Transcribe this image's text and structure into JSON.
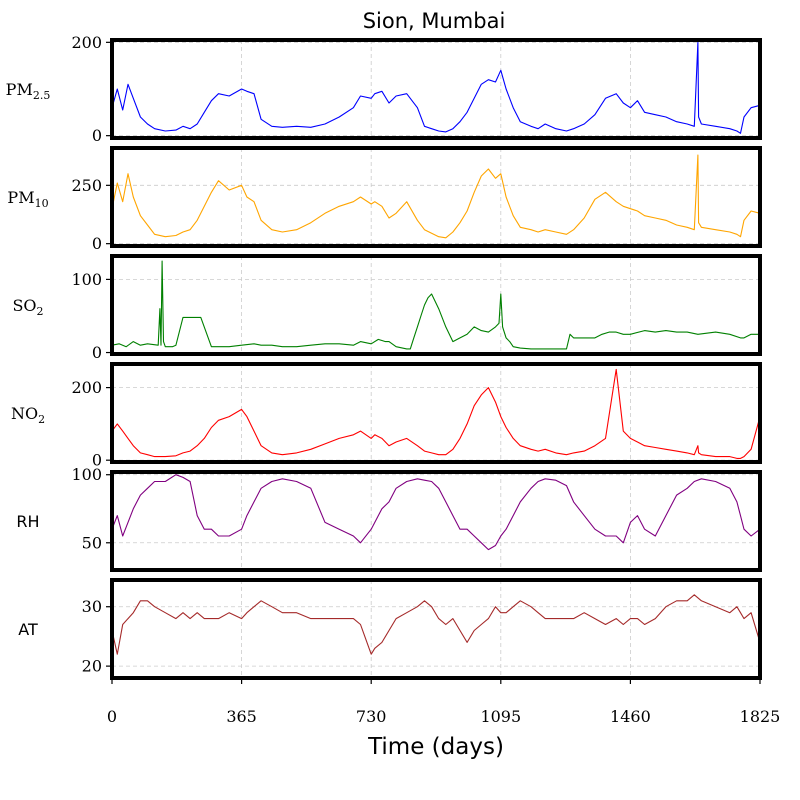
{
  "chart_data": {
    "type": "line",
    "title": "Sion, Mumbai",
    "xlabel": "Time (days)",
    "xlim": [
      0,
      1825
    ],
    "xticks": [
      0,
      365,
      730,
      1095,
      1460,
      1825
    ],
    "xtick_labels": [
      "0",
      "365",
      "730",
      "1095",
      "1460",
      "1825"
    ],
    "grid": true,
    "panels": [
      {
        "key": "pm25",
        "label": "PM",
        "label_sub": "2.5",
        "color": "#0000ff",
        "ylim": [
          -5,
          205
        ],
        "yticks": [
          0,
          200
        ],
        "ytick_labels": [
          "0",
          "200"
        ],
        "x": [
          0,
          15,
          30,
          45,
          60,
          80,
          100,
          120,
          150,
          180,
          200,
          220,
          240,
          260,
          280,
          300,
          330,
          365,
          380,
          400,
          420,
          450,
          480,
          520,
          560,
          600,
          640,
          680,
          700,
          730,
          740,
          760,
          780,
          800,
          830,
          860,
          880,
          900,
          920,
          940,
          960,
          980,
          1000,
          1020,
          1040,
          1060,
          1080,
          1095,
          1110,
          1130,
          1150,
          1180,
          1200,
          1220,
          1250,
          1280,
          1300,
          1330,
          1360,
          1390,
          1420,
          1440,
          1460,
          1480,
          1500,
          1530,
          1560,
          1590,
          1620,
          1640,
          1650,
          1652,
          1660,
          1700,
          1740,
          1760,
          1770,
          1780,
          1800,
          1825
        ],
        "y": [
          60,
          100,
          55,
          110,
          80,
          40,
          25,
          15,
          10,
          12,
          20,
          15,
          25,
          50,
          75,
          90,
          85,
          100,
          95,
          90,
          35,
          20,
          18,
          20,
          18,
          25,
          40,
          60,
          85,
          80,
          90,
          95,
          70,
          85,
          90,
          60,
          20,
          15,
          10,
          8,
          15,
          30,
          50,
          80,
          110,
          120,
          115,
          140,
          100,
          60,
          30,
          20,
          15,
          25,
          15,
          10,
          15,
          25,
          45,
          80,
          90,
          70,
          60,
          75,
          50,
          45,
          40,
          30,
          25,
          20,
          200,
          40,
          25,
          20,
          15,
          10,
          5,
          40,
          60,
          65
        ]
      },
      {
        "key": "pm10",
        "label": "PM",
        "label_sub": "10",
        "color": "#ffa500",
        "ylim": [
          -10,
          410
        ],
        "yticks": [
          0,
          250
        ],
        "ytick_labels": [
          "0",
          "250"
        ],
        "x": [
          0,
          15,
          30,
          45,
          60,
          80,
          100,
          120,
          150,
          180,
          200,
          220,
          240,
          260,
          280,
          300,
          330,
          365,
          380,
          400,
          420,
          450,
          480,
          520,
          560,
          600,
          640,
          680,
          700,
          730,
          740,
          760,
          780,
          800,
          830,
          860,
          880,
          900,
          920,
          940,
          960,
          980,
          1000,
          1020,
          1040,
          1060,
          1080,
          1095,
          1110,
          1130,
          1150,
          1180,
          1200,
          1220,
          1250,
          1280,
          1300,
          1330,
          1360,
          1390,
          1420,
          1440,
          1460,
          1480,
          1500,
          1530,
          1560,
          1590,
          1620,
          1640,
          1650,
          1652,
          1660,
          1700,
          1740,
          1760,
          1770,
          1780,
          1800,
          1825
        ],
        "y": [
          150,
          260,
          180,
          300,
          200,
          120,
          80,
          40,
          30,
          35,
          50,
          60,
          100,
          160,
          220,
          270,
          230,
          250,
          200,
          180,
          100,
          60,
          50,
          60,
          90,
          130,
          160,
          180,
          200,
          170,
          180,
          160,
          110,
          130,
          180,
          100,
          60,
          45,
          30,
          25,
          50,
          90,
          140,
          220,
          290,
          320,
          280,
          300,
          200,
          120,
          70,
          60,
          50,
          60,
          50,
          40,
          60,
          110,
          190,
          220,
          180,
          160,
          150,
          140,
          120,
          110,
          100,
          80,
          70,
          60,
          380,
          90,
          70,
          60,
          50,
          40,
          30,
          100,
          140,
          130
        ]
      },
      {
        "key": "so2",
        "label": "SO",
        "label_sub": "2",
        "color": "#008000",
        "ylim": [
          -2,
          132
        ],
        "yticks": [
          0,
          100
        ],
        "ytick_labels": [
          "0",
          "100"
        ],
        "x": [
          0,
          20,
          40,
          60,
          80,
          100,
          130,
          135,
          138,
          141,
          145,
          150,
          160,
          170,
          180,
          200,
          220,
          250,
          280,
          300,
          330,
          365,
          400,
          420,
          450,
          480,
          520,
          560,
          600,
          640,
          680,
          700,
          730,
          750,
          770,
          780,
          800,
          830,
          840,
          850,
          860,
          870,
          880,
          890,
          900,
          920,
          940,
          960,
          980,
          1000,
          1020,
          1040,
          1060,
          1080,
          1090,
          1095,
          1100,
          1110,
          1120,
          1130,
          1150,
          1180,
          1200,
          1220,
          1250,
          1280,
          1290,
          1300,
          1330,
          1360,
          1380,
          1400,
          1420,
          1440,
          1460,
          1500,
          1530,
          1560,
          1590,
          1620,
          1650,
          1700,
          1740,
          1770,
          1780,
          1800,
          1825
        ],
        "y": [
          10,
          12,
          8,
          15,
          10,
          12,
          10,
          60,
          10,
          125,
          15,
          8,
          8,
          8,
          10,
          48,
          48,
          48,
          8,
          8,
          8,
          10,
          12,
          10,
          10,
          8,
          8,
          10,
          12,
          12,
          10,
          15,
          12,
          18,
          15,
          15,
          8,
          5,
          5,
          20,
          35,
          50,
          65,
          75,
          80,
          60,
          35,
          15,
          20,
          25,
          35,
          30,
          28,
          35,
          40,
          80,
          35,
          20,
          15,
          8,
          6,
          5,
          5,
          5,
          5,
          5,
          25,
          20,
          20,
          20,
          25,
          28,
          28,
          25,
          25,
          30,
          28,
          30,
          28,
          28,
          25,
          28,
          25,
          20,
          20,
          25,
          25
        ]
      },
      {
        "key": "no2",
        "label": "NO",
        "label_sub": "2",
        "color": "#ff0000",
        "ylim": [
          -5,
          265
        ],
        "yticks": [
          0,
          200
        ],
        "ytick_labels": [
          "0",
          "200"
        ],
        "x": [
          0,
          15,
          30,
          45,
          60,
          80,
          100,
          120,
          150,
          180,
          200,
          220,
          240,
          260,
          280,
          300,
          330,
          365,
          380,
          400,
          420,
          450,
          480,
          520,
          560,
          600,
          640,
          680,
          700,
          730,
          740,
          760,
          780,
          800,
          830,
          860,
          880,
          900,
          920,
          940,
          960,
          980,
          1000,
          1020,
          1040,
          1060,
          1080,
          1095,
          1110,
          1130,
          1150,
          1180,
          1200,
          1220,
          1250,
          1280,
          1300,
          1330,
          1360,
          1390,
          1420,
          1440,
          1460,
          1480,
          1500,
          1530,
          1560,
          1590,
          1620,
          1640,
          1650,
          1652,
          1660,
          1700,
          1740,
          1760,
          1770,
          1780,
          1800,
          1825
        ],
        "y": [
          80,
          100,
          80,
          60,
          40,
          20,
          15,
          10,
          10,
          12,
          20,
          25,
          40,
          60,
          90,
          110,
          120,
          140,
          120,
          80,
          40,
          20,
          15,
          20,
          30,
          45,
          60,
          70,
          80,
          60,
          70,
          60,
          40,
          50,
          60,
          40,
          25,
          20,
          15,
          15,
          30,
          60,
          100,
          150,
          180,
          200,
          160,
          120,
          90,
          60,
          40,
          30,
          25,
          30,
          20,
          15,
          20,
          25,
          40,
          60,
          250,
          80,
          60,
          50,
          40,
          35,
          30,
          25,
          20,
          15,
          40,
          20,
          15,
          10,
          10,
          5,
          5,
          10,
          30,
          120
        ]
      },
      {
        "key": "rh",
        "label": "RH",
        "label_sub": "",
        "color": "#800080",
        "ylim": [
          30,
          102
        ],
        "yticks": [
          50,
          100
        ],
        "ytick_labels": [
          "50",
          "100"
        ],
        "x": [
          0,
          15,
          30,
          45,
          60,
          80,
          100,
          120,
          150,
          180,
          200,
          220,
          240,
          260,
          280,
          300,
          330,
          365,
          380,
          400,
          420,
          450,
          480,
          520,
          560,
          600,
          640,
          680,
          700,
          730,
          740,
          760,
          780,
          800,
          830,
          860,
          880,
          900,
          920,
          940,
          960,
          980,
          1000,
          1020,
          1040,
          1060,
          1080,
          1095,
          1110,
          1130,
          1150,
          1180,
          1200,
          1220,
          1250,
          1280,
          1300,
          1330,
          1360,
          1390,
          1420,
          1440,
          1460,
          1480,
          1500,
          1530,
          1560,
          1590,
          1620,
          1640,
          1660,
          1700,
          1740,
          1760,
          1770,
          1780,
          1800,
          1825
        ],
        "y": [
          60,
          70,
          55,
          65,
          75,
          85,
          90,
          95,
          95,
          100,
          98,
          95,
          70,
          60,
          60,
          55,
          55,
          60,
          70,
          80,
          90,
          95,
          97,
          95,
          90,
          65,
          60,
          55,
          50,
          60,
          65,
          75,
          80,
          90,
          95,
          97,
          96,
          95,
          90,
          80,
          70,
          60,
          60,
          55,
          50,
          45,
          48,
          55,
          60,
          70,
          80,
          90,
          95,
          97,
          96,
          92,
          80,
          70,
          60,
          55,
          55,
          50,
          65,
          70,
          60,
          55,
          70,
          85,
          90,
          95,
          97,
          95,
          90,
          80,
          70,
          60,
          55,
          60
        ]
      },
      {
        "key": "at",
        "label": "AT",
        "label_sub": "",
        "color": "#a52a2a",
        "ylim": [
          18,
          34.5
        ],
        "yticks": [
          20,
          30
        ],
        "ytick_labels": [
          "20",
          "30"
        ],
        "x": [
          0,
          15,
          30,
          45,
          60,
          80,
          100,
          120,
          150,
          180,
          200,
          220,
          240,
          260,
          280,
          300,
          330,
          365,
          380,
          400,
          420,
          450,
          480,
          520,
          560,
          600,
          640,
          680,
          700,
          730,
          740,
          760,
          780,
          800,
          830,
          860,
          880,
          900,
          920,
          940,
          960,
          980,
          1000,
          1020,
          1040,
          1060,
          1080,
          1095,
          1110,
          1130,
          1150,
          1180,
          1200,
          1220,
          1250,
          1280,
          1300,
          1330,
          1360,
          1390,
          1420,
          1440,
          1460,
          1480,
          1500,
          1530,
          1560,
          1590,
          1620,
          1640,
          1660,
          1700,
          1740,
          1760,
          1770,
          1780,
          1800,
          1825
        ],
        "y": [
          26,
          22,
          27,
          28,
          29,
          31,
          31,
          30,
          29,
          28,
          29,
          28,
          29,
          28,
          28,
          28,
          29,
          28,
          29,
          30,
          31,
          30,
          29,
          29,
          28,
          28,
          28,
          28,
          27,
          22,
          23,
          24,
          26,
          28,
          29,
          30,
          31,
          30,
          28,
          27,
          28,
          26,
          24,
          26,
          27,
          28,
          30,
          29,
          29,
          30,
          31,
          30,
          29,
          28,
          28,
          28,
          28,
          29,
          28,
          27,
          28,
          27,
          28,
          28,
          27,
          28,
          30,
          31,
          31,
          32,
          31,
          30,
          29,
          30,
          29,
          28,
          29,
          24
        ]
      }
    ]
  }
}
